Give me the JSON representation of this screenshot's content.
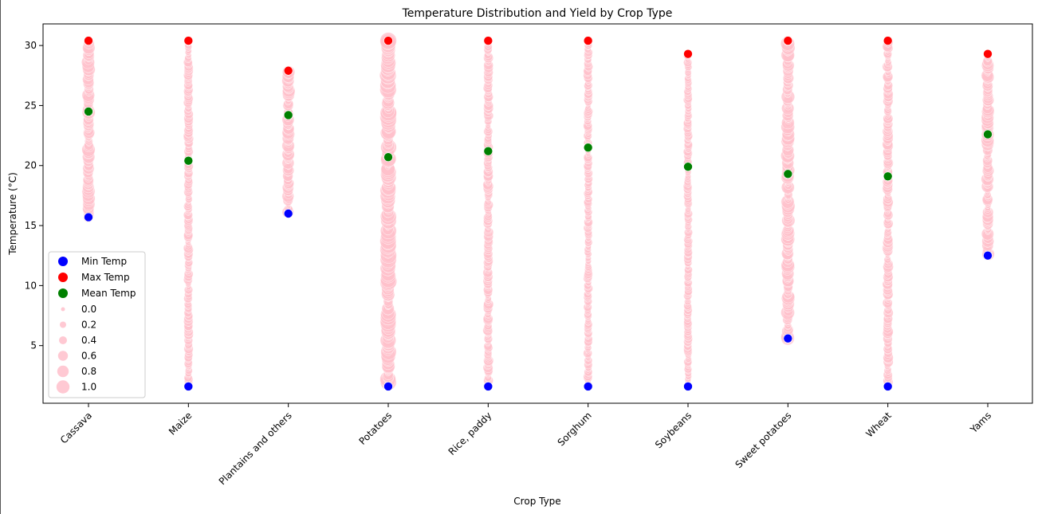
{
  "chart_data": {
    "type": "scatter",
    "title": "Temperature Distribution and Yield by Crop Type",
    "xlabel": "Crop Type",
    "ylabel": "Temperature (°C)",
    "categories": [
      "Cassava",
      "Maize",
      "Plantains and others",
      "Potatoes",
      "Rice, paddy",
      "Sorghum",
      "Soybeans",
      "Sweet potatoes",
      "Wheat",
      "Yams"
    ],
    "ylim": [
      0.2,
      31.8
    ],
    "yticks": [
      5,
      10,
      15,
      20,
      25,
      30
    ],
    "grid": false,
    "legend_position": "lower-left",
    "colors": {
      "min": "#0000ff",
      "max": "#ff0000",
      "mean": "#008000",
      "yield": "#ffc0cb"
    },
    "series": [
      {
        "name": "Min Temp",
        "values": [
          15.7,
          1.6,
          16.0,
          1.6,
          1.6,
          1.6,
          1.6,
          5.6,
          1.6,
          12.5
        ]
      },
      {
        "name": "Max Temp",
        "values": [
          30.4,
          30.4,
          27.9,
          30.4,
          30.4,
          30.4,
          29.3,
          30.4,
          30.4,
          29.3
        ]
      },
      {
        "name": "Mean Temp",
        "values": [
          24.5,
          20.4,
          24.2,
          20.7,
          21.2,
          21.5,
          19.9,
          19.3,
          19.1,
          22.6
        ]
      }
    ],
    "yield_legend": {
      "values": [
        "0.0",
        "0.2",
        "0.4",
        "0.6",
        "0.8",
        "1.0"
      ]
    },
    "distribution": [
      {
        "crop": "Cassava",
        "min": 15.7,
        "max": 30.4,
        "yield": 0.55
      },
      {
        "crop": "Maize",
        "min": 1.6,
        "max": 30.4,
        "yield": 0.2
      },
      {
        "crop": "Plantains and others",
        "min": 16.0,
        "max": 27.9,
        "yield": 0.5
      },
      {
        "crop": "Potatoes",
        "min": 1.6,
        "max": 30.4,
        "yield": 0.85
      },
      {
        "crop": "Rice, paddy",
        "min": 1.6,
        "max": 30.4,
        "yield": 0.25
      },
      {
        "crop": "Sorghum",
        "min": 1.6,
        "max": 30.4,
        "yield": 0.15
      },
      {
        "crop": "Soybeans",
        "min": 1.6,
        "max": 29.3,
        "yield": 0.12
      },
      {
        "crop": "Sweet potatoes",
        "min": 5.6,
        "max": 30.4,
        "yield": 0.6
      },
      {
        "crop": "Wheat",
        "min": 1.6,
        "max": 30.4,
        "yield": 0.3
      },
      {
        "crop": "Yams",
        "min": 12.5,
        "max": 29.3,
        "yield": 0.5
      }
    ]
  }
}
